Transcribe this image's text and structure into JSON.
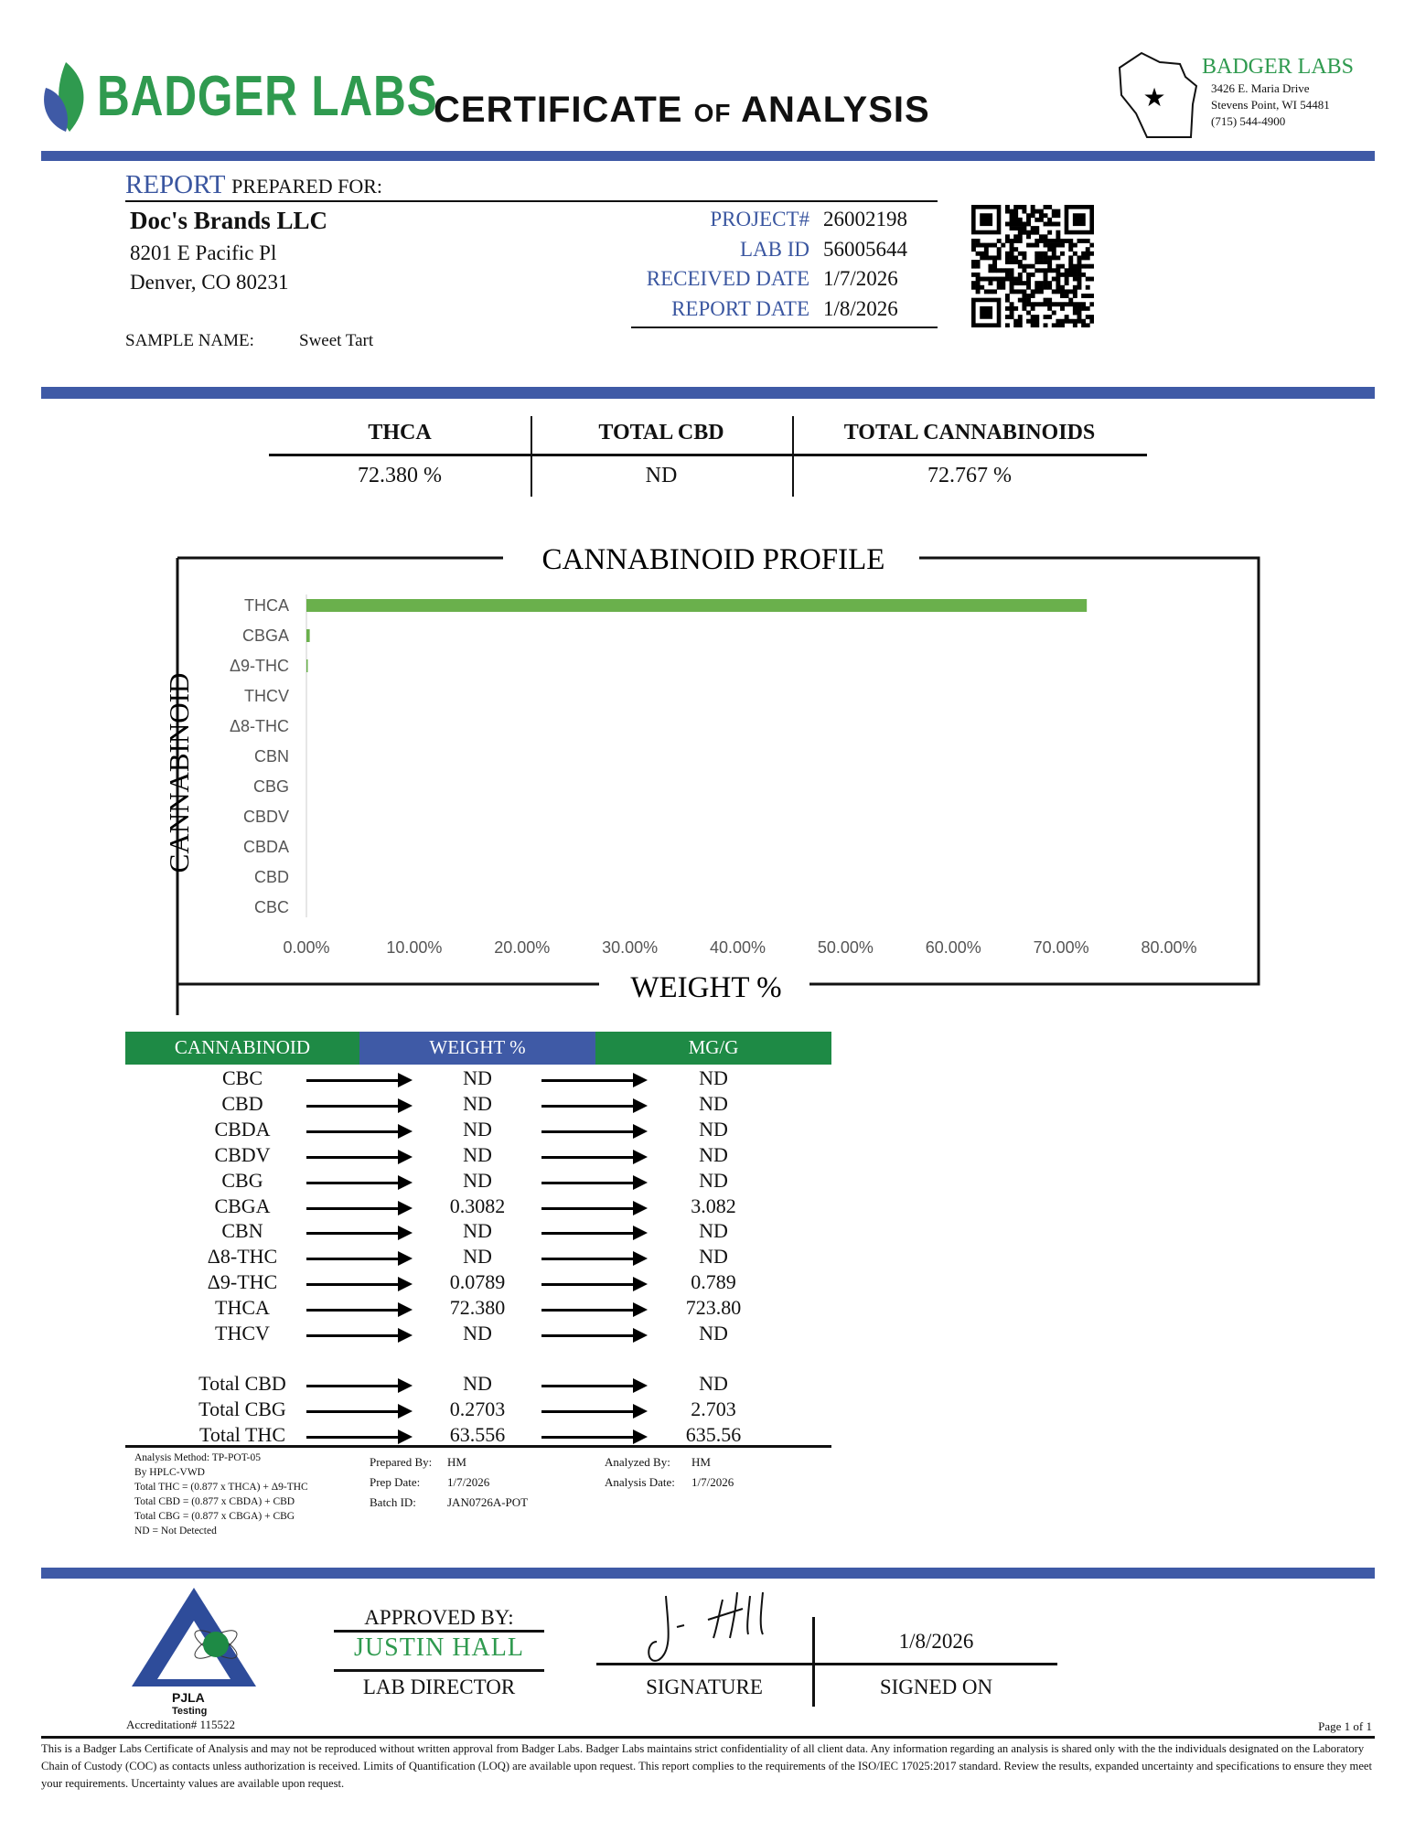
{
  "header": {
    "brand": "BADGER LABS",
    "title_main1": "CERTIFICATE",
    "title_of": "OF",
    "title_main2": "ANALYSIS",
    "lab_name": "BADGER LABS",
    "lab_address1": "3426 E. Maria Drive",
    "lab_address2": "Stevens Point, WI 54481",
    "lab_phone": "(715) 544-4900"
  },
  "client": {
    "report_label": "REPORT",
    "prepared_for": "PREPARED FOR:",
    "name": "Doc's Brands LLC",
    "address1": "8201 E Pacific Pl",
    "address2": "Denver, CO 80231",
    "sample_label": "SAMPLE NAME:",
    "sample_name": "Sweet Tart"
  },
  "project": {
    "project_label": "PROJECT#",
    "project": "26002198",
    "labid_label": "LAB ID",
    "labid": "56005644",
    "received_label": "RECEIVED DATE",
    "received": "1/7/2026",
    "report_label": "REPORT DATE",
    "report": "1/8/2026"
  },
  "summary": [
    {
      "label": "THCA",
      "value": "72.380 %"
    },
    {
      "label": "TOTAL CBD",
      "value": "ND"
    },
    {
      "label": "TOTAL CANNABINOIDS",
      "value": "72.767 %"
    }
  ],
  "chart_data": {
    "type": "bar",
    "orientation": "horizontal",
    "title": "CANNABINOID PROFILE",
    "xlabel": "WEIGHT %",
    "ylabel": "CANNABINOID",
    "categories": [
      "THCA",
      "CBGA",
      "Δ9-THC",
      "THCV",
      "Δ8-THC",
      "CBN",
      "CBG",
      "CBDV",
      "CBDA",
      "CBD",
      "CBC"
    ],
    "values": [
      72.38,
      0.3082,
      0.0789,
      0,
      0,
      0,
      0,
      0,
      0,
      0,
      0
    ],
    "xlim": [
      0,
      80
    ],
    "xticks": [
      "0.00%",
      "10.00%",
      "20.00%",
      "30.00%",
      "40.00%",
      "50.00%",
      "60.00%",
      "70.00%",
      "80.00%"
    ],
    "grid": false,
    "bar_color": "#6ab04c"
  },
  "table": {
    "headers": [
      "CANNABINOID",
      "WEIGHT %",
      "MG/G"
    ],
    "rows": [
      [
        "CBC",
        "ND",
        "ND"
      ],
      [
        "CBD",
        "ND",
        "ND"
      ],
      [
        "CBDA",
        "ND",
        "ND"
      ],
      [
        "CBDV",
        "ND",
        "ND"
      ],
      [
        "CBG",
        "ND",
        "ND"
      ],
      [
        "CBGA",
        "0.3082",
        "3.082"
      ],
      [
        "CBN",
        "ND",
        "ND"
      ],
      [
        "Δ8-THC",
        "ND",
        "ND"
      ],
      [
        "Δ9-THC",
        "0.0789",
        "0.789"
      ],
      [
        "THCA",
        "72.380",
        "723.80"
      ],
      [
        "THCV",
        "ND",
        "ND"
      ]
    ],
    "totals": [
      [
        "Total CBD",
        "ND",
        "ND"
      ],
      [
        "Total CBG",
        "0.2703",
        "2.703"
      ],
      [
        "Total THC",
        "63.556",
        "635.56"
      ]
    ]
  },
  "notes": {
    "method": [
      "Analysis Method: TP-POT-05",
      "By HPLC-VWD",
      "Total THC = (0.877 x  THCA) + Δ9-THC",
      "Total CBD = (0.877 x  CBDA) + CBD",
      "Total CBG = (0.877 x  CBGA) + CBG",
      "ND = Not Detected"
    ],
    "prepared_by_label": "Prepared By:",
    "prepared_by": "HM",
    "prep_date_label": "Prep Date:",
    "prep_date": "1/7/2026",
    "batch_label": "Batch ID:",
    "batch": "JAN0726A-POT",
    "analyzed_by_label": "Analyzed By:",
    "analyzed_by": "HM",
    "analysis_date_label": "Analysis Date:",
    "analysis_date": "1/7/2026"
  },
  "approval": {
    "approved_label": "APPROVED BY:",
    "name": "JUSTIN HALL",
    "role": "LAB DIRECTOR",
    "signature_label": "SIGNATURE",
    "signed_on_label": "SIGNED ON",
    "signed_on": "1/8/2026",
    "signature": "J Hall"
  },
  "footer": {
    "pjla": "PJLA",
    "testing": "Testing",
    "accreditation": "Accreditation# 115522",
    "page": "Page 1 of 1",
    "disclaimer": "This is a Badger Labs Certificate of Analysis and may not be reproduced without written approval from Badger Labs. Badger Labs maintains strict confidentiality of all client data. Any information regarding an analysis is shared only with the the individuals designated on the Laboratory Chain of Custody (COC) as contacts unless authorization is received. Limits of Quantification (LOQ) are available upon request. This report complies to the requirements of the ISO/IEC 17025:2017 standard. Review the results, expanded uncertainty and specifications to ensure they meet your requirements. Uncertainty values are available upon request."
  },
  "colors": {
    "blue": "#3f5aa6",
    "green": "#1e8a45",
    "bar": "#6ab04c"
  }
}
